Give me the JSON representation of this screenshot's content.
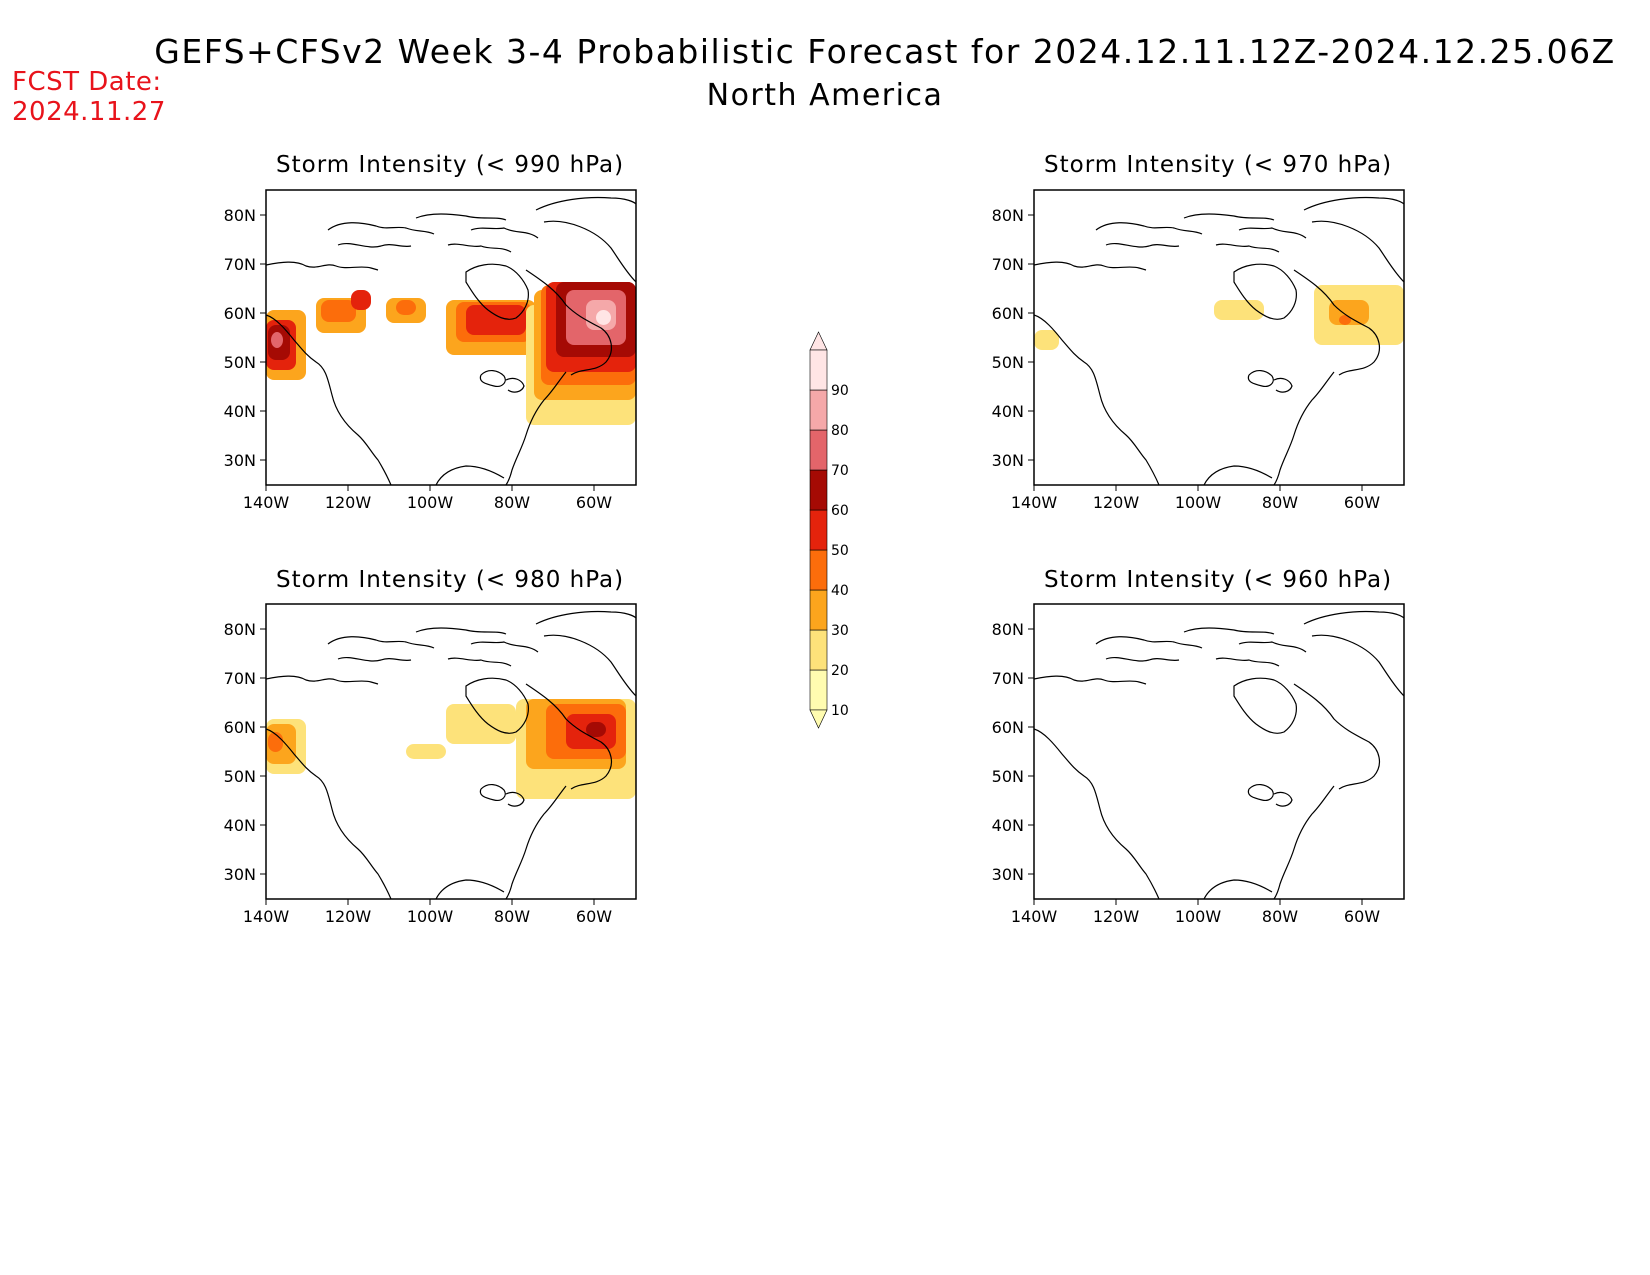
{
  "header": {
    "title": "GEFS+CFSv2 Week 3-4 Probabilistic Forecast for 2024.12.11.12Z-2024.12.25.06Z",
    "subtitle": "North America",
    "fcst_label": "FCST Date:",
    "fcst_date": "2024.11.27"
  },
  "axes": {
    "lat_ticks": [
      "80N",
      "70N",
      "60N",
      "50N",
      "40N",
      "30N"
    ],
    "lon_ticks": [
      "140W",
      "120W",
      "100W",
      "80W",
      "60W"
    ]
  },
  "colorbar": {
    "labels": [
      "10",
      "20",
      "30",
      "40",
      "50",
      "60",
      "70",
      "80",
      "90"
    ],
    "colors": [
      "#fffcb0",
      "#fde27a",
      "#fca51d",
      "#fc6d0b",
      "#e4230c",
      "#a50a04",
      "#e3656a",
      "#f5a8a9",
      "#ffe5e5"
    ]
  },
  "panels": [
    {
      "id": "p990",
      "title": "Storm Intensity (< 990 hPa)"
    },
    {
      "id": "p980",
      "title": "Storm Intensity (< 980 hPa)"
    },
    {
      "id": "p970",
      "title": "Storm Intensity (< 970 hPa)"
    },
    {
      "id": "p960",
      "title": "Storm Intensity (< 960 hPa)"
    }
  ]
}
